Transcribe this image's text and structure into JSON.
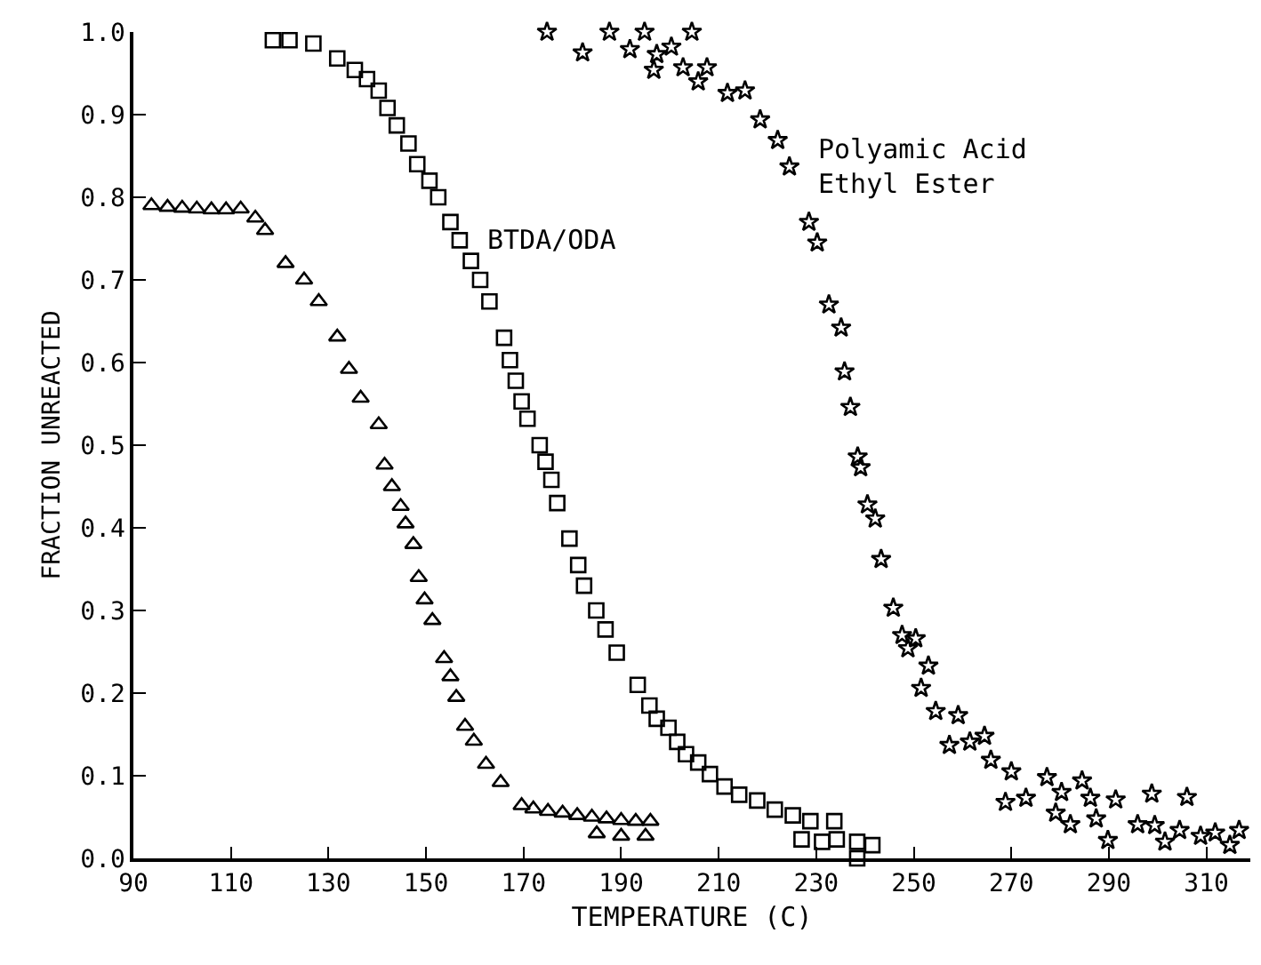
{
  "chart_data": {
    "type": "scatter",
    "xlabel": "TEMPERATURE (C)",
    "ylabel": "FRACTION UNREACTED",
    "xlim": [
      90,
      319
    ],
    "ylim": [
      0,
      1
    ],
    "xticks": [
      90,
      110,
      130,
      150,
      170,
      190,
      210,
      230,
      250,
      270,
      290,
      310
    ],
    "yticks": [
      {
        "value": 0,
        "label": "0.0"
      },
      0.1,
      0.2,
      0.3,
      0.4,
      0.5,
      0.6,
      0.7,
      0.8,
      0.9,
      {
        "value": 1,
        "label": "1.0"
      }
    ],
    "grid": false,
    "legend": false,
    "series": [
      {
        "color": "#000000",
        "marker": "triangle",
        "x": [
          93.7,
          97,
          100,
          103,
          106,
          109,
          112,
          115,
          117,
          121.2,
          125,
          128,
          131.8,
          134.2,
          136.6,
          140.3,
          141.5,
          143,
          144.8,
          145.8,
          147.4,
          148.5,
          149.7,
          151.3,
          153.7,
          155,
          156.2,
          158,
          159.8,
          162.3,
          165.3,
          169.6,
          172,
          175,
          178,
          181,
          184,
          187,
          190,
          193,
          196,
          185,
          190,
          195
        ],
        "values": [
          0.79,
          0.788,
          0.787,
          0.786,
          0.785,
          0.785,
          0.786,
          0.775,
          0.76,
          0.72,
          0.7,
          0.674,
          0.631,
          0.592,
          0.557,
          0.525,
          0.476,
          0.45,
          0.426,
          0.405,
          0.38,
          0.34,
          0.313,
          0.288,
          0.242,
          0.22,
          0.195,
          0.16,
          0.142,
          0.114,
          0.092,
          0.064,
          0.06,
          0.057,
          0.055,
          0.052,
          0.05,
          0.048,
          0.046,
          0.045,
          0.045,
          0.03,
          0.027,
          0.027
        ]
      },
      {
        "name": "BTDA/ODA",
        "color": "#000000",
        "marker": "square",
        "x": [
          118.6,
          122,
          126.9,
          131.8,
          135.4,
          137.9,
          140.3,
          142.1,
          144,
          146.4,
          148.2,
          150.7,
          152.5,
          155,
          156.9,
          159.2,
          161.1,
          163,
          166,
          167.2,
          168.4,
          169.6,
          170.8,
          173.3,
          174.5,
          175.7,
          176.9,
          179.4,
          181.2,
          182.4,
          184.9,
          186.8,
          189.1,
          193.4,
          195.8,
          197.3,
          199.7,
          201.5,
          203.3,
          205.8,
          208.2,
          211.2,
          214.2,
          217.9,
          221.5,
          225.2,
          228.8,
          227,
          231.2,
          233.7,
          234.2,
          238.4,
          238.4,
          241.5
        ],
        "values": [
          0.99,
          0.99,
          0.986,
          0.968,
          0.954,
          0.943,
          0.929,
          0.908,
          0.887,
          0.865,
          0.84,
          0.82,
          0.8,
          0.77,
          0.748,
          0.723,
          0.7,
          0.674,
          0.63,
          0.603,
          0.578,
          0.553,
          0.532,
          0.5,
          0.48,
          0.458,
          0.43,
          0.387,
          0.355,
          0.33,
          0.3,
          0.277,
          0.249,
          0.21,
          0.185,
          0.169,
          0.158,
          0.141,
          0.126,
          0.116,
          0.102,
          0.087,
          0.077,
          0.07,
          0.059,
          0.052,
          0.045,
          0.023,
          0.02,
          0.045,
          0.023,
          0.02,
          0.0,
          0.016
        ]
      },
      {
        "name": "Polyamic Acid Ethyl Ester",
        "color": "#000000",
        "marker": "star",
        "x": [
          174.8,
          182.1,
          187.6,
          191.8,
          194.8,
          197.3,
          200.3,
          204.5,
          196.7,
          202.7,
          207.6,
          205.8,
          211.8,
          215.4,
          218.5,
          222.1,
          224.5,
          228.5,
          230.2,
          232.6,
          235.1,
          235.8,
          237,
          238.5,
          239.1,
          240.5,
          242.1,
          243.3,
          245.8,
          247.6,
          250.4,
          248.8,
          253,
          251.5,
          254.5,
          259.1,
          257.3,
          261.5,
          264.5,
          265.8,
          270,
          268.8,
          273,
          277.3,
          280.3,
          279.1,
          284.5,
          282.1,
          286.2,
          287.4,
          291.4,
          289.8,
          295.9,
          298.8,
          299.4,
          301.5,
          306,
          304.5,
          308.8,
          311.8,
          314.8,
          316.7
        ],
        "values": [
          1.0,
          0.975,
          1.0,
          0.979,
          1.0,
          0.973,
          0.982,
          1.0,
          0.954,
          0.957,
          0.957,
          0.94,
          0.926,
          0.929,
          0.894,
          0.869,
          0.837,
          0.77,
          0.745,
          0.67,
          0.642,
          0.589,
          0.546,
          0.486,
          0.473,
          0.428,
          0.411,
          0.362,
          0.303,
          0.27,
          0.266,
          0.254,
          0.233,
          0.206,
          0.178,
          0.173,
          0.137,
          0.141,
          0.148,
          0.119,
          0.105,
          0.068,
          0.073,
          0.098,
          0.08,
          0.055,
          0.094,
          0.041,
          0.073,
          0.048,
          0.071,
          0.022,
          0.041,
          0.078,
          0.04,
          0.02,
          0.074,
          0.034,
          0.027,
          0.031,
          0.016,
          0.034
        ]
      }
    ]
  }
}
